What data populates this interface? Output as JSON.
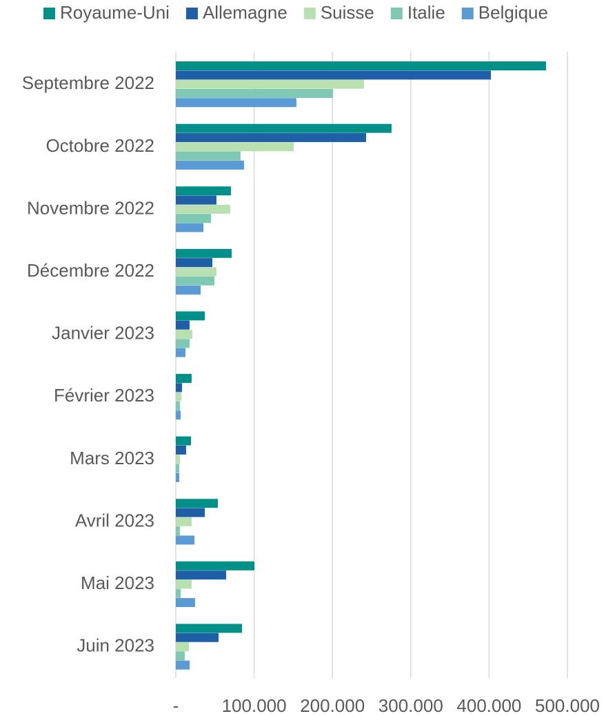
{
  "chart_data": {
    "type": "bar",
    "orientation": "horizontal",
    "categories": [
      "Septembre 2022",
      "Octobre 2022",
      "Novembre 2022",
      "Décembre 2022",
      "Janvier 2023",
      "Février 2023",
      "Mars 2023",
      "Avril 2023",
      "Mai 2023",
      "Juin 2023"
    ],
    "series": [
      {
        "name": "Royaume-Uni",
        "color": "#009089",
        "values": [
          472700,
          275500,
          70400,
          71300,
          37000,
          20200,
          19400,
          53700,
          100400,
          84500
        ]
      },
      {
        "name": "Allemagne",
        "color": "#1f5fa6",
        "values": [
          402300,
          243000,
          51900,
          46700,
          17600,
          7900,
          13200,
          37000,
          64300,
          54600
        ]
      },
      {
        "name": "Suisse",
        "color": "#b8e0b0",
        "values": [
          240300,
          150500,
          69500,
          51900,
          21100,
          7000,
          5300,
          20200,
          20200,
          16700
        ]
      },
      {
        "name": "Italie",
        "color": "#7fc9b4",
        "values": [
          200700,
          82700,
          44900,
          49300,
          17600,
          5300,
          4400,
          5300,
          6200,
          11400
        ]
      },
      {
        "name": "Belgique",
        "color": "#5b9bd5",
        "values": [
          154000,
          87100,
          35200,
          31700,
          12300,
          6200,
          4400,
          23800,
          24600,
          17600
        ]
      }
    ],
    "xlim": [
      0,
      500000
    ],
    "xticks": [
      {
        "value": 0,
        "label": "-"
      },
      {
        "value": 100000,
        "label": "100.000"
      },
      {
        "value": 200000,
        "label": "200.000"
      },
      {
        "value": 300000,
        "label": "300.000"
      },
      {
        "value": 400000,
        "label": "400.000"
      },
      {
        "value": 500000,
        "label": "500.000"
      }
    ],
    "grid": true,
    "legend": "top"
  }
}
